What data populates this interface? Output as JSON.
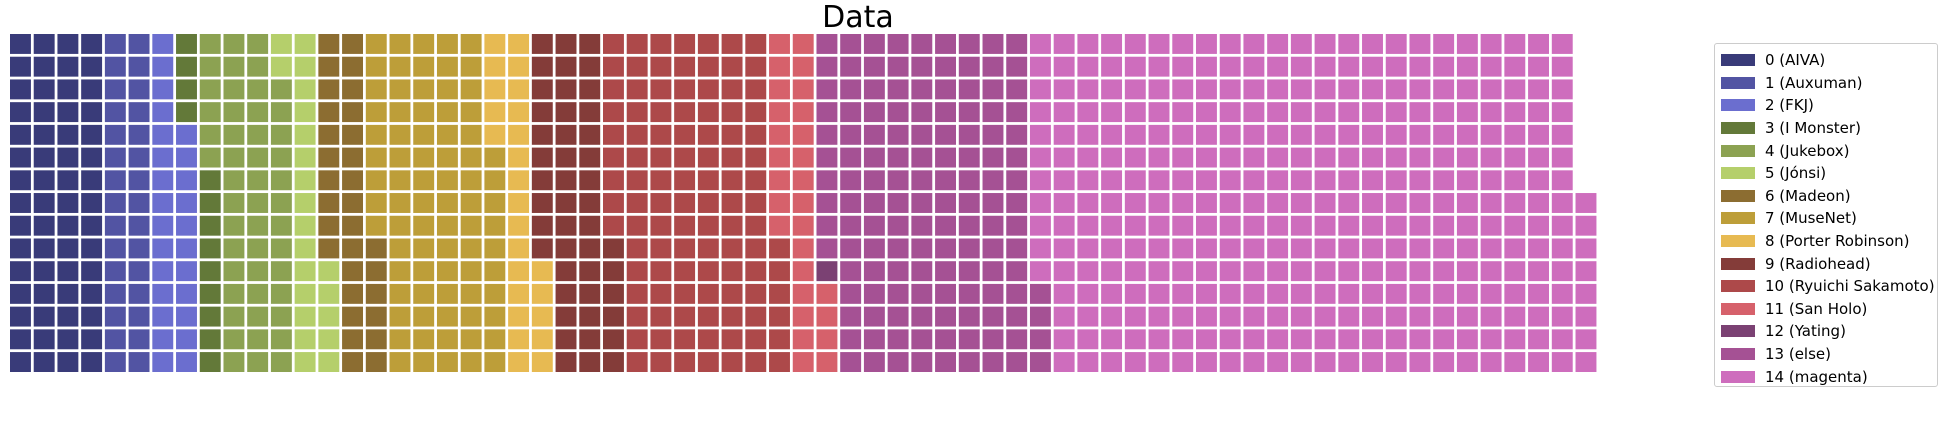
{
  "chart_data": {
    "type": "waffle",
    "title": "Data",
    "rows": 15,
    "column_order": "top-to-bottom, left-to-right",
    "legend_position": "right",
    "categories": [
      {
        "label": "0 (AIVA)",
        "count": 60,
        "color": "#393b79"
      },
      {
        "label": "1 (Auxuman)",
        "count": 30,
        "color": "#5254a3"
      },
      {
        "label": "2 (FKJ)",
        "count": 26,
        "color": "#6b6ecf"
      },
      {
        "label": "3 (I Monster)",
        "count": 13,
        "color": "#637939"
      },
      {
        "label": "4 (Jukebox)",
        "count": 49,
        "color": "#8ca252"
      },
      {
        "label": "5 (Jónsi)",
        "count": 22,
        "color": "#b5cf6b"
      },
      {
        "label": "6 (Madeon)",
        "count": 31,
        "color": "#8c6d31"
      },
      {
        "label": "7 (MuseNet)",
        "count": 79,
        "color": "#bd9e39"
      },
      {
        "label": "8 (Porter Robinson)",
        "count": 25,
        "color": "#e7ba52"
      },
      {
        "label": "9 (Radiohead)",
        "count": 46,
        "color": "#843c39"
      },
      {
        "label": "10 (Ryuichi Sakamoto)",
        "count": 105,
        "color": "#ad494a"
      },
      {
        "label": "11 (San Holo)",
        "count": 28,
        "color": "#d6616b"
      },
      {
        "label": "12 (Yating)",
        "count": 1,
        "color": "#7b4173"
      },
      {
        "label": "13 (else)",
        "count": 134,
        "color": "#a55194"
      },
      {
        "label": "14 (magenta)",
        "count": 349,
        "color": "#ce6dbd"
      }
    ]
  }
}
